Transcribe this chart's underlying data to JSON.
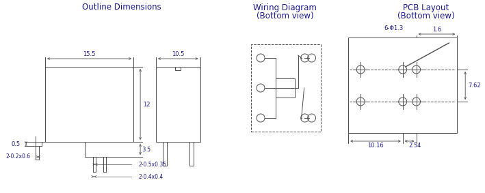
{
  "title_outline": "Outline Dimensions",
  "title_wiring": "Wiring Diagram",
  "title_wiring2": "(Bottom view)",
  "title_pcb": "PCB Layout",
  "title_pcb2": "(Bottom view)",
  "text_color": "#1a1a8c",
  "line_color": "#4d4d4d",
  "bg_color": "#ffffff",
  "dim_155": "15.5",
  "dim_105": "10.5",
  "dim_12": "12",
  "dim_35": "3.5",
  "dim_05": "0.5",
  "dim_202x06": "2-0.2x0.6",
  "dim_205x035": "2-0.5x0.35",
  "dim_204x04": "2-0.4x0.4",
  "dim_6phi13": "6-Φ1.3",
  "dim_16": "1.6",
  "dim_762": "7.62",
  "dim_1016": "10.16",
  "dim_254": "2.54"
}
